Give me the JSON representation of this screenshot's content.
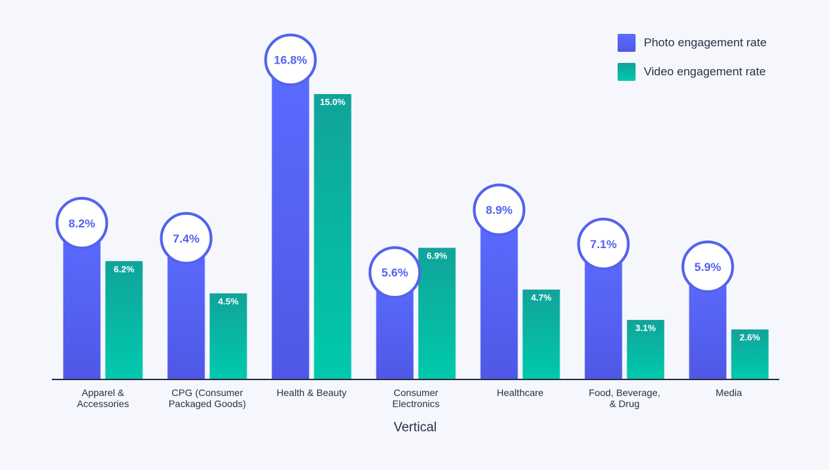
{
  "chart_data": {
    "type": "bar",
    "title": "",
    "xlabel": "Vertical",
    "ylabel": "",
    "ylim": [
      0,
      18.5
    ],
    "grid": false,
    "legend_position": "top-right",
    "categories": [
      [
        "Apparel &",
        "Accessories"
      ],
      [
        "CPG (Consumer",
        "Packaged Goods)"
      ],
      [
        "Health & Beauty"
      ],
      [
        "Consumer",
        "Electronics"
      ],
      [
        "Healthcare"
      ],
      [
        "Food, Beverage,",
        "& Drug"
      ],
      [
        "Media"
      ]
    ],
    "series": [
      {
        "name": "Photo engagement rate",
        "values": [
          8.2,
          7.4,
          16.8,
          5.6,
          8.9,
          7.1,
          5.9
        ],
        "labels": [
          "8.2%",
          "7.4%",
          "16.8%",
          "5.6%",
          "8.9%",
          "7.1%",
          "5.9%"
        ],
        "color_top": "#5b6cff",
        "color_bottom": "#4f58e6"
      },
      {
        "name": "Video engagement rate",
        "values": [
          6.2,
          4.5,
          15.0,
          6.9,
          4.7,
          3.1,
          2.6
        ],
        "labels": [
          "6.2%",
          "4.5%",
          "15.0%",
          "6.9%",
          "4.7%",
          "3.1%",
          "2.6%"
        ],
        "color_top": "#11a39a",
        "color_bottom": "#00c9ad"
      }
    ]
  },
  "colors": {
    "background": "#f6f7fd",
    "axis": "#2a3046",
    "text": "#2a3046",
    "photo_label": "#5462ee"
  }
}
